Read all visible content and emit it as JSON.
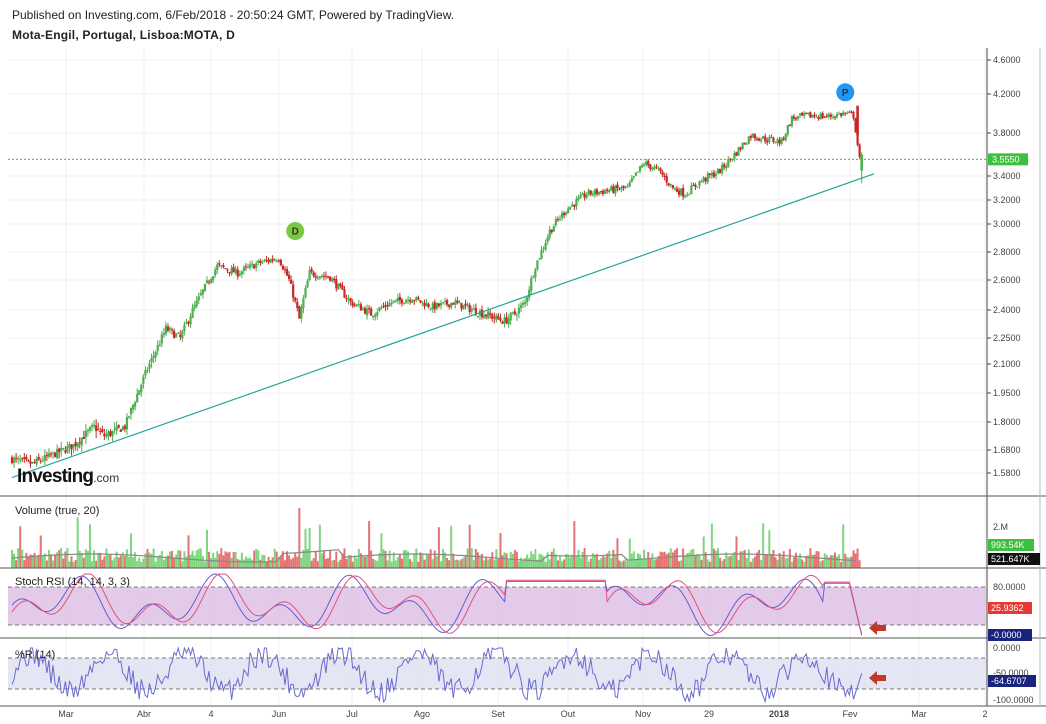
{
  "header": {
    "published": "Published on Investing.com, 6/Feb/2018 - 20:50:24 GMT, Powered by TradingView.",
    "symbol": "Mota-Engil, Portugal, Lisboa:MOTA, D"
  },
  "logo": {
    "text": "Investing",
    "suffix": ".com"
  },
  "colors": {
    "up": "#4caf50",
    "down": "#c62828",
    "trend": "#26a69a",
    "stoch_k": "#6a5acd",
    "stoch_d": "#e05080",
    "band": "#d9b3df",
    "wr_band": "#dfe0f0",
    "price_tag": "#3fbf3f",
    "axis": "#444444"
  },
  "chart_data": [
    {
      "type": "candlestick",
      "title": "Mota-Engil, Portugal, Lisboa:MOTA, D",
      "x_ticks": [
        "Mar",
        "Abr",
        "4",
        "Jun",
        "Jul",
        "Ago",
        "Set",
        "Out",
        "Nov",
        "29",
        "2018",
        "Fev",
        "Mar",
        "2"
      ],
      "y_ticks": [
        "4.6000",
        "4.2000",
        "3.8000",
        "3.4000",
        "3.2000",
        "3.0000",
        "2.8000",
        "2.6000",
        "2.4000",
        "2.2500",
        "2.1000",
        "1.9500",
        "1.8000",
        "1.6800",
        "1.5800"
      ],
      "last_price": "3.5550",
      "close_path": [
        [
          0,
          1.64
        ],
        [
          10,
          1.62
        ],
        [
          20,
          1.66
        ],
        [
          30,
          1.7
        ],
        [
          40,
          1.78
        ],
        [
          45,
          1.74
        ],
        [
          55,
          1.78
        ],
        [
          65,
          2.05
        ],
        [
          75,
          2.3
        ],
        [
          82,
          2.25
        ],
        [
          90,
          2.45
        ],
        [
          100,
          2.7
        ],
        [
          110,
          2.65
        ],
        [
          120,
          2.72
        ],
        [
          130,
          2.76
        ],
        [
          135,
          2.6
        ],
        [
          140,
          2.35
        ],
        [
          145,
          2.65
        ],
        [
          155,
          2.62
        ],
        [
          165,
          2.45
        ],
        [
          175,
          2.38
        ],
        [
          185,
          2.45
        ],
        [
          195,
          2.48
        ],
        [
          205,
          2.42
        ],
        [
          215,
          2.45
        ],
        [
          225,
          2.4
        ],
        [
          235,
          2.36
        ],
        [
          240,
          2.34
        ],
        [
          245,
          2.38
        ],
        [
          250,
          2.45
        ],
        [
          255,
          2.7
        ],
        [
          262,
          2.95
        ],
        [
          270,
          3.12
        ],
        [
          280,
          3.25
        ],
        [
          290,
          3.28
        ],
        [
          300,
          3.3
        ],
        [
          308,
          3.52
        ],
        [
          315,
          3.45
        ],
        [
          322,
          3.3
        ],
        [
          328,
          3.25
        ],
        [
          335,
          3.35
        ],
        [
          345,
          3.45
        ],
        [
          352,
          3.6
        ],
        [
          360,
          3.78
        ],
        [
          368,
          3.74
        ],
        [
          375,
          3.72
        ],
        [
          380,
          3.95
        ],
        [
          390,
          3.98
        ],
        [
          398,
          3.97
        ],
        [
          405,
          4.0
        ],
        [
          410,
          3.98
        ],
        [
          413,
          3.55
        ]
      ],
      "markers": [
        {
          "label": "D",
          "color": "#7ac943"
        },
        {
          "label": "P",
          "color": "#2196f3"
        }
      ],
      "trendline": {
        "start": [
          0,
          1.56
        ],
        "end": [
          420,
          3.42
        ]
      }
    },
    {
      "type": "bar",
      "title": "Volume (true, 20)",
      "y_ticks": [
        "2.M"
      ],
      "labels": [
        "993.54K",
        "521.647K"
      ]
    },
    {
      "type": "line",
      "title": "Stoch RSI (14, 14, 3, 3)",
      "y_ticks": [
        "80.0000"
      ],
      "labels": [
        "25.9362",
        "-0.0000"
      ],
      "upper": 80,
      "lower": 20
    },
    {
      "type": "line",
      "title": "%R (14)",
      "y_ticks": [
        "0.0000",
        "-50.0000",
        "-100.0000"
      ],
      "labels": [
        "-64.6707"
      ],
      "upper": -20,
      "lower": -80
    }
  ]
}
